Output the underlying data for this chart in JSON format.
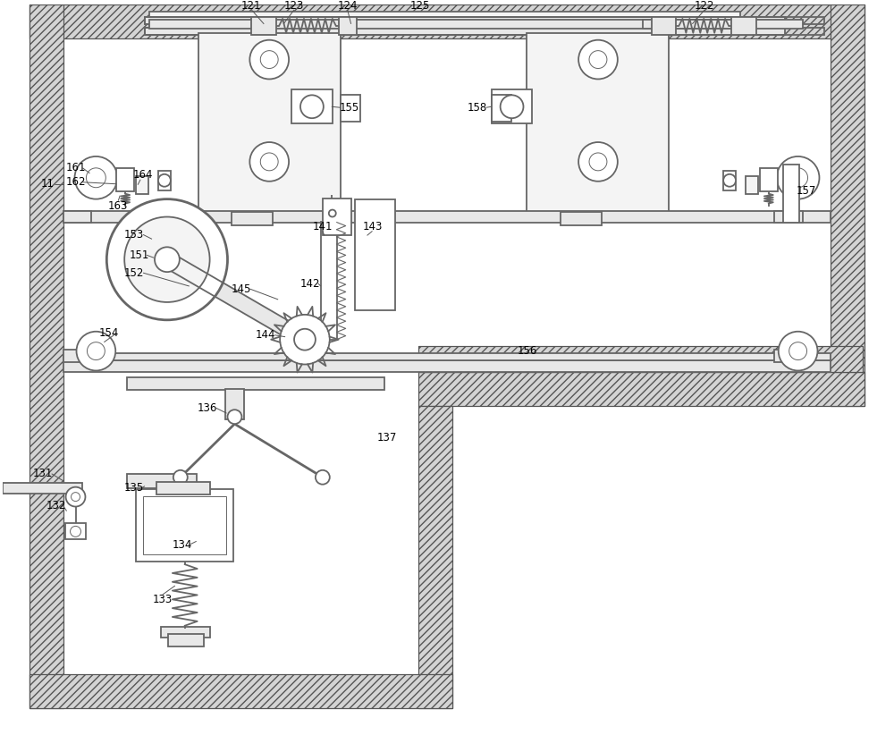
{
  "bg_color": "#ffffff",
  "wall_fc": "#d4d4d4",
  "wall_ec": "#555555",
  "line_color": "#666666",
  "dark_line": "#444444",
  "fill_light": "#f4f4f4",
  "fill_med": "#e8e8e8",
  "lw_main": 1.3,
  "lw_thin": 0.7,
  "lw_thick": 2.0,
  "label_fs": 8.5,
  "text_color": "#000000"
}
